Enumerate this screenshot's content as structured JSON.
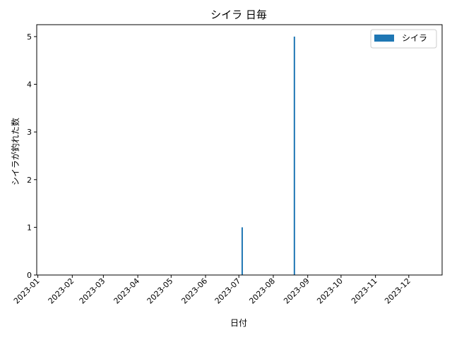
{
  "chart_data": {
    "type": "bar",
    "title": "シイラ 日毎",
    "xlabel": "日付",
    "ylabel": "シイラが釣れた数",
    "x_range": [
      "2022-12-31",
      "2023-12-31"
    ],
    "xticks": [
      "2023-01",
      "2023-02",
      "2023-03",
      "2023-04",
      "2023-05",
      "2023-06",
      "2023-07",
      "2023-08",
      "2023-09",
      "2023-10",
      "2023-11",
      "2023-12"
    ],
    "ylim": [
      0,
      5.25
    ],
    "yticks": [
      0,
      1,
      2,
      3,
      4,
      5
    ],
    "grid": false,
    "legend": {
      "position": "top-right",
      "entries": [
        "シイラ"
      ]
    },
    "series": [
      {
        "name": "シイラ",
        "color": "#1f77b4",
        "points": [
          {
            "date": "2023-07-04",
            "value": 1
          },
          {
            "date": "2023-08-20",
            "value": 5
          }
        ]
      }
    ]
  }
}
